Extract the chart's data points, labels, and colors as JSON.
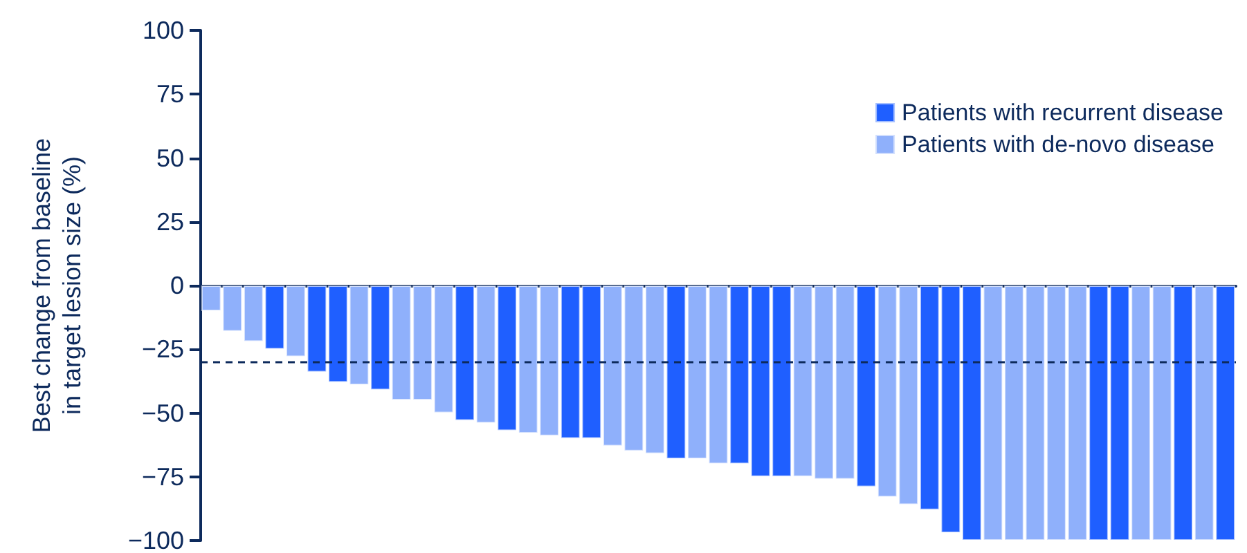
{
  "chart_data": {
    "type": "bar",
    "ylabel": "Best change from baseline\nin target lesion size (%)",
    "categories": [
      null,
      null,
      null,
      null,
      null,
      null,
      null,
      null,
      null,
      null,
      null,
      null,
      null,
      null,
      null,
      null,
      null,
      null,
      null,
      null,
      null,
      null,
      null,
      null,
      null,
      null,
      null,
      null,
      null,
      null,
      null,
      null,
      null,
      null,
      null,
      null,
      null,
      null,
      null,
      null,
      null,
      null,
      null,
      null,
      null,
      null,
      null,
      null,
      null
    ],
    "series": [
      {
        "name": "Patients with recurrent disease",
        "color": "#1f5fff",
        "values": [
          null,
          null,
          null,
          -25,
          null,
          -34,
          -38,
          null,
          -41,
          null,
          null,
          null,
          -53,
          null,
          -57,
          null,
          null,
          -60,
          -60,
          null,
          null,
          null,
          -68,
          null,
          null,
          -70,
          -75,
          -75,
          null,
          null,
          null,
          -79,
          null,
          null,
          -88,
          -97,
          -100,
          null,
          null,
          null,
          null,
          null,
          -100,
          -100,
          null,
          null,
          -100,
          null,
          -100
        ]
      },
      {
        "name": "Patients with de-novo disease",
        "color": "#8fb0fb",
        "values": [
          -10,
          -18,
          -22,
          null,
          -28,
          null,
          null,
          -39,
          null,
          -45,
          -45,
          -50,
          null,
          -54,
          null,
          -58,
          -59,
          null,
          null,
          -63,
          -65,
          -66,
          null,
          -68,
          -70,
          null,
          null,
          null,
          -75,
          -76,
          -76,
          null,
          -83,
          -86,
          null,
          null,
          null,
          -100,
          -100,
          -100,
          -100,
          -100,
          null,
          null,
          -100,
          -100,
          null,
          -100,
          null
        ]
      }
    ],
    "ylim": [
      -100,
      100
    ],
    "yticks": [
      -100,
      -75,
      -50,
      -25,
      0,
      25,
      50,
      75,
      100
    ],
    "ref_lines": [
      {
        "axis": "y",
        "value": -30,
        "color": "#0d2a5c",
        "line_style": "dashed"
      }
    ],
    "legend": "top right",
    "grid": false
  }
}
